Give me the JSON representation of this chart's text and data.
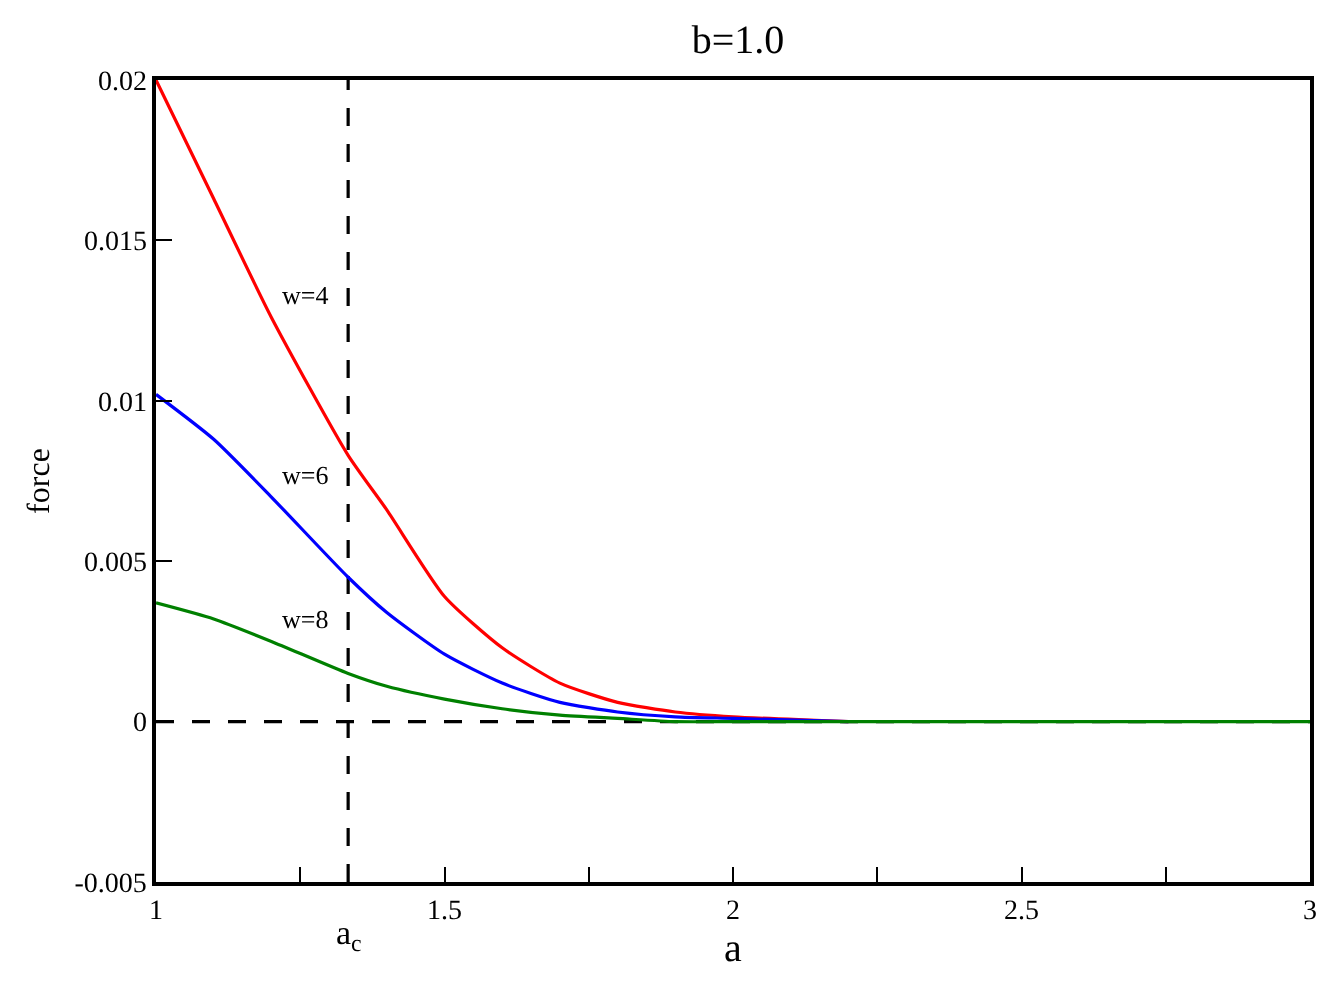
{
  "chart_data": {
    "type": "line",
    "title": "b=1.0",
    "xlabel": "a",
    "ylabel": "force",
    "x": [
      1,
      1.1,
      1.2,
      1.333,
      1.4,
      1.5,
      1.6,
      1.7,
      1.8,
      1.9,
      2.0,
      2.2,
      2.5,
      3
    ],
    "series": [
      {
        "name": "w=4",
        "color": "#ff0000",
        "values": [
          0.02,
          0.0163,
          0.0126,
          0.0083,
          0.0066,
          0.0039,
          0.0023,
          0.0012,
          0.0006,
          0.0003,
          0.00015,
          0,
          null,
          null
        ]
      },
      {
        "name": "w=6",
        "color": "#0000ff",
        "values": [
          0.0102,
          0.0088,
          0.007,
          0.0045,
          0.0034,
          0.0021,
          0.0012,
          0.0006,
          0.0003,
          0.00015,
          0.0001,
          0,
          null,
          null
        ]
      },
      {
        "name": "w=8",
        "color": "#008000",
        "values": [
          0.0037,
          0.0032,
          0.0025,
          0.0015,
          0.0011,
          0.0007,
          0.0004,
          0.0002,
          0.0001,
          0,
          0,
          0,
          0,
          0
        ]
      }
    ],
    "xlim": [
      1,
      3
    ],
    "ylim": [
      -0.005,
      0.02
    ],
    "xticks": [
      1,
      {
        "value": 1.25,
        "label": null
      },
      1.5,
      {
        "value": 1.75,
        "label": null
      },
      2,
      {
        "value": 2.25,
        "label": null
      },
      2.5,
      {
        "value": 2.75,
        "label": null
      },
      3
    ],
    "yticks": [
      -0.005,
      0,
      0.005,
      0.01,
      0.015,
      0.02
    ],
    "ref_lines": [
      {
        "axis": "x",
        "value": 1.333,
        "label": "a$_{c}$",
        "color": "#000000",
        "line_style": "dashed"
      },
      {
        "axis": "y",
        "value": 0,
        "color": "#000000",
        "line_style": "dashed"
      }
    ],
    "grid": false,
    "legend": false,
    "marker": "none",
    "line_style": "solid"
  }
}
